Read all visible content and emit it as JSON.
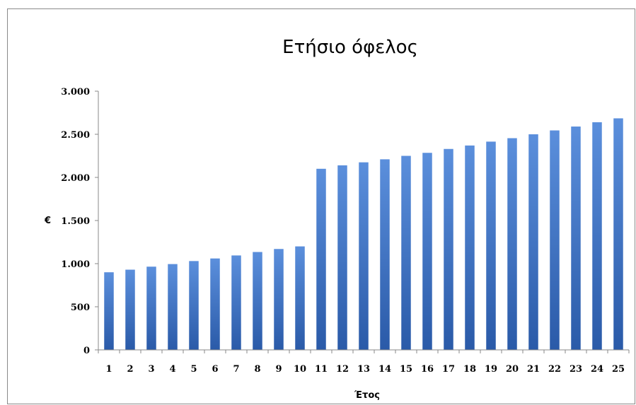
{
  "chart_data": {
    "type": "bar",
    "title": "Ετήσιο όφελος",
    "xlabel": "Έτος",
    "ylabel": "€",
    "categories": [
      "1",
      "2",
      "3",
      "4",
      "5",
      "6",
      "7",
      "8",
      "9",
      "10",
      "11",
      "12",
      "13",
      "14",
      "15",
      "16",
      "17",
      "18",
      "19",
      "20",
      "21",
      "22",
      "23",
      "24",
      "25"
    ],
    "values": [
      900,
      930,
      965,
      995,
      1030,
      1060,
      1095,
      1135,
      1170,
      1200,
      2100,
      2140,
      2175,
      2210,
      2250,
      2285,
      2330,
      2370,
      2415,
      2455,
      2500,
      2545,
      2590,
      2640,
      2685
    ],
    "ylim": [
      0,
      3000
    ],
    "yticks": [
      {
        "value": 0,
        "label": "0"
      },
      {
        "value": 500,
        "label": "500"
      },
      {
        "value": 1000,
        "label": "1.000"
      },
      {
        "value": 1500,
        "label": "1.500"
      },
      {
        "value": 2000,
        "label": "2.000"
      },
      {
        "value": 2500,
        "label": "2.500"
      },
      {
        "value": 3000,
        "label": "3.000"
      }
    ],
    "grid": false,
    "legend": "none",
    "bar_color_light": "#5b8fdc",
    "bar_color_dark": "#2a5aa8",
    "axis_color": "#8a8a8a"
  }
}
